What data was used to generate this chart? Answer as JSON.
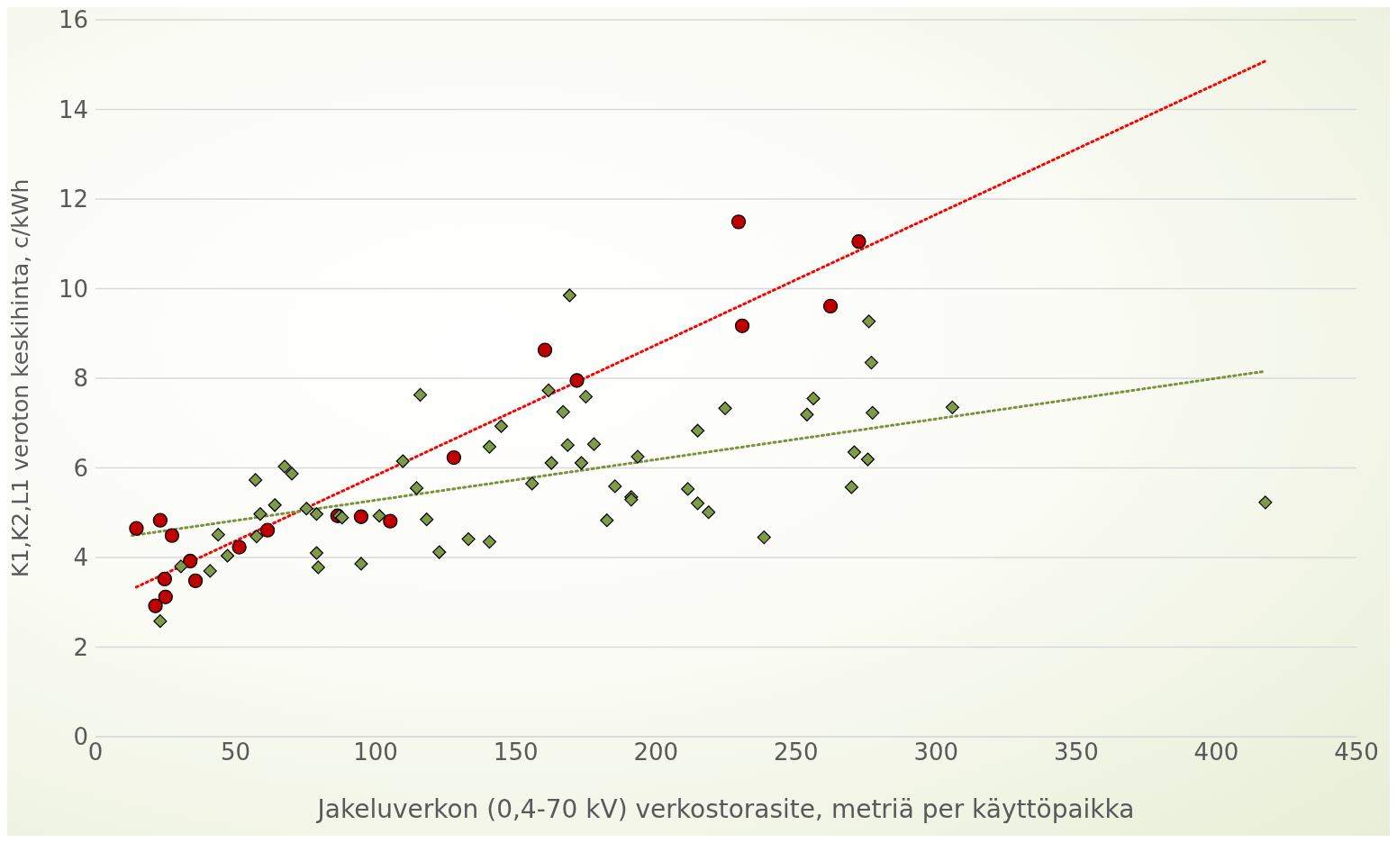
{
  "chart_data": {
    "type": "scatter",
    "xlabel": "Jakeluverkon (0,4-70 kV) verkostorasite, metriä per käyttöpaikka",
    "ylabel": "K1,K2,L1 veroton keskihinta, c/kWh",
    "xlim": [
      0,
      450
    ],
    "xticks": [
      0,
      50,
      100,
      150,
      200,
      250,
      300,
      350,
      400,
      450
    ],
    "ylim": [
      0,
      16
    ],
    "yticks": [
      0,
      2,
      4,
      6,
      8,
      10,
      12,
      14,
      16
    ],
    "grid": "y",
    "series": [
      {
        "marker": "circle",
        "color": "#c00000",
        "x": [
          14.6,
          23.1,
          27.3,
          24.7,
          33.8,
          35.7,
          21.4,
          25.0,
          51.3,
          61.4,
          86.4,
          94.8,
          105.2,
          127.9,
          160.4,
          171.8,
          229.5,
          230.8,
          262.3,
          272.4
        ],
        "values": [
          4.65,
          4.83,
          4.49,
          3.52,
          3.92,
          3.48,
          2.92,
          3.12,
          4.23,
          4.61,
          4.93,
          4.91,
          4.81,
          6.23,
          8.63,
          7.95,
          11.49,
          9.17,
          9.61,
          11.05
        ]
      },
      {
        "marker": "diamond",
        "color": "#7f9a48",
        "x": [
          23.1,
          30.5,
          40.9,
          43.8,
          47.1,
          57.1,
          57.5,
          58.8,
          64.0,
          67.5,
          70.1,
          75.3,
          78.9,
          78.9,
          79.5,
          87.0,
          88.0,
          94.8,
          101.3,
          109.7,
          114.6,
          115.9,
          118.2,
          122.7,
          133.1,
          140.6,
          140.6,
          144.8,
          155.8,
          161.7,
          162.7,
          166.9,
          168.5,
          169.2,
          173.4,
          175.0,
          177.9,
          182.5,
          185.4,
          191.2,
          191.2,
          193.5,
          211.4,
          214.9,
          214.9,
          218.8,
          224.7,
          238.6,
          253.9,
          256.2,
          269.8,
          270.8,
          275.6,
          276.0,
          276.9,
          277.3,
          305.8,
          417.5
        ],
        "values": [
          2.58,
          3.8,
          3.7,
          4.51,
          4.04,
          5.73,
          4.47,
          4.97,
          5.17,
          6.03,
          5.87,
          5.09,
          4.97,
          4.1,
          3.78,
          4.93,
          4.89,
          3.86,
          4.93,
          6.15,
          5.55,
          7.63,
          4.85,
          4.12,
          4.41,
          6.47,
          4.35,
          6.93,
          5.65,
          7.73,
          6.11,
          7.25,
          6.51,
          9.85,
          6.11,
          7.59,
          6.53,
          4.83,
          5.59,
          5.35,
          5.29,
          6.25,
          5.53,
          6.83,
          5.21,
          5.01,
          7.33,
          4.45,
          7.19,
          7.55,
          5.57,
          6.35,
          6.19,
          9.27,
          8.35,
          7.23,
          7.35,
          5.23
        ]
      },
      {
        "type": "line",
        "line_style": "dotted",
        "marker": "none",
        "color": "#ff0000",
        "x": [
          14.6,
          418.2
        ],
        "values": [
          3.34,
          15.1
        ]
      },
      {
        "type": "line",
        "line_style": "dotted",
        "marker": "none",
        "color": "#77933c",
        "x": [
          13.0,
          416.6
        ],
        "values": [
          4.49,
          8.15
        ]
      }
    ]
  }
}
